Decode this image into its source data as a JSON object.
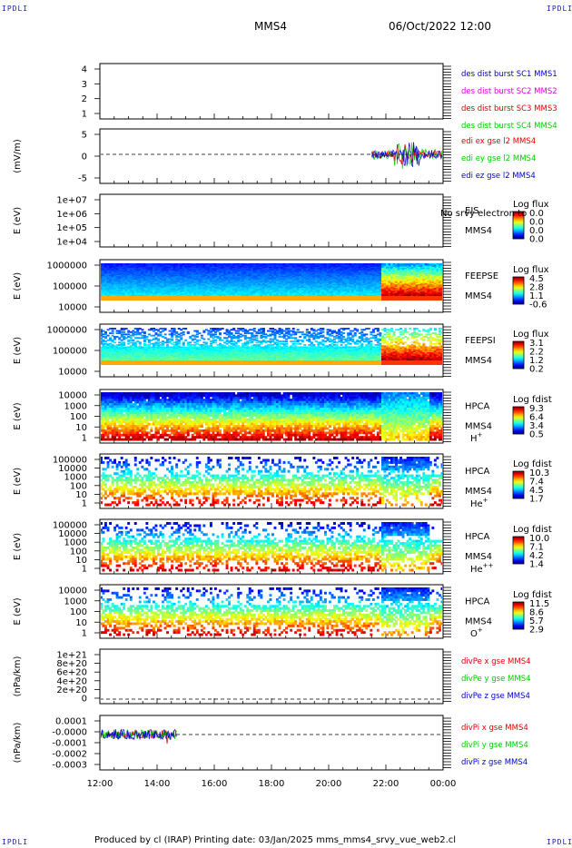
{
  "corners": {
    "tl": "IPDLI",
    "tr": "IPDLI",
    "bl": "IPDLI",
    "br": "IPDLI"
  },
  "header": {
    "spacecraft": "MMS4",
    "datetime": "06/Oct/2022 12:00"
  },
  "footer": {
    "text": "Produced by cl (IRAP)   Printing date: 03/Jan/2025   mms_mms4_srvy_vue_web2.cl"
  },
  "colors": {
    "blue": "#0000cc",
    "magenta": "#e000e0",
    "red": "#dd0000",
    "green": "#00cc00"
  },
  "chart_data": {
    "type": "multi-panel time series / spectrogram",
    "x": {
      "ticks": [
        "12:00",
        "14:00",
        "16:00",
        "18:00",
        "20:00",
        "22:00",
        "00:00"
      ],
      "range_hours": [
        12,
        24
      ]
    },
    "panels": [
      {
        "id": "p1",
        "ylabel": "",
        "yticks": [
          "4",
          "3",
          "2",
          "1"
        ],
        "legend": [
          {
            "text": "des dist burst SC1 MMS1",
            "color": "#0000cc"
          },
          {
            "text": "des dist burst SC2 MMS2",
            "color": "#e000e0"
          },
          {
            "text": "des dist burst SC3 MMS3",
            "color": "#dd0000"
          },
          {
            "text": "des dist burst SC4 MMS4",
            "color": "#00cc00"
          }
        ]
      },
      {
        "id": "p2",
        "ylabel": "(mV/m)",
        "yticks": [
          "5",
          "0",
          "-5"
        ],
        "legend": [
          {
            "text": "edi ex gse l2 MMS4",
            "color": "#dd0000"
          },
          {
            "text": "edi ey gse l2 MMS4",
            "color": "#00cc00"
          },
          {
            "text": "edi ez gse l2 MMS4",
            "color": "#0000cc"
          }
        ],
        "data_start_hour": 21.5
      },
      {
        "id": "p3",
        "ylabel": "E (eV)",
        "yticks": [
          "1e+07",
          "1e+06",
          "1e+05",
          "1e+04"
        ],
        "side": [
          "EIS",
          "MMS4"
        ],
        "overlay": "No srvy electron to",
        "cbar": {
          "title": "Log flux",
          "values": [
            "0.0",
            "0.0",
            "0.0",
            "0.0"
          ]
        }
      },
      {
        "id": "p4",
        "ylabel": "E (eV)",
        "yticks": [
          "1000000",
          "100000",
          "10000"
        ],
        "side": [
          "FEEPSE",
          "MMS4"
        ],
        "cbar": {
          "title": "Log flux",
          "values": [
            "4.5",
            "2.8",
            "1.1",
            "-0.6"
          ]
        }
      },
      {
        "id": "p5",
        "ylabel": "E (eV)",
        "yticks": [
          "1000000",
          "100000",
          "10000"
        ],
        "side": [
          "FEEPSI",
          "MMS4"
        ],
        "cbar": {
          "title": "Log flux",
          "values": [
            "3.1",
            "2.2",
            "1.2",
            "0.2"
          ]
        }
      },
      {
        "id": "p6",
        "ylabel": "E (eV)",
        "yticks": [
          "10000",
          "1000",
          "100",
          "10",
          "1"
        ],
        "side": [
          "HPCA",
          "MMS4"
        ],
        "species": "H",
        "species_sup": "+",
        "cbar": {
          "title": "Log fdist",
          "values": [
            "9.3",
            "6.4",
            "3.4",
            "0.5"
          ]
        }
      },
      {
        "id": "p7",
        "ylabel": "E (eV)",
        "yticks": [
          "100000",
          "10000",
          "1000",
          "100",
          "10",
          "1"
        ],
        "side": [
          "HPCA",
          "MMS4"
        ],
        "species": "He",
        "species_sup": "+",
        "cbar": {
          "title": "Log fdist",
          "values": [
            "10.3",
            "7.4",
            "4.5",
            "1.7"
          ]
        }
      },
      {
        "id": "p8",
        "ylabel": "E (eV)",
        "yticks": [
          "100000",
          "10000",
          "1000",
          "100",
          "10",
          "1"
        ],
        "side": [
          "HPCA",
          "MMS4"
        ],
        "species": "He",
        "species_sup": "++",
        "cbar": {
          "title": "Log fdist",
          "values": [
            "10.0",
            "7.1",
            "4.2",
            "1.4"
          ]
        }
      },
      {
        "id": "p9",
        "ylabel": "E (eV)",
        "yticks": [
          "10000",
          "1000",
          "100",
          "10",
          "1"
        ],
        "side": [
          "HPCA",
          "MMS4"
        ],
        "species": "O",
        "species_sup": "+",
        "cbar": {
          "title": "Log fdist",
          "values": [
            "11.5",
            "8.6",
            "5.7",
            "2.9"
          ]
        }
      },
      {
        "id": "p10",
        "ylabel": "(nPa/km)",
        "yticks": [
          "1e+21",
          "8e+20",
          "6e+20",
          "4e+20",
          "2e+20",
          "0"
        ],
        "legend": [
          {
            "text": "divPe x gse MMS4",
            "color": "#dd0000"
          },
          {
            "text": "divPe y gse MMS4",
            "color": "#00cc00"
          },
          {
            "text": "divPe z gse MMS4",
            "color": "#0000cc"
          }
        ]
      },
      {
        "id": "p11",
        "ylabel": "(nPa/km)",
        "yticks": [
          "0.0001",
          "-0.0000",
          "-0.0001",
          "-0.0002",
          "-0.0003"
        ],
        "legend": [
          {
            "text": "divPi x gse MMS4",
            "color": "#dd0000"
          },
          {
            "text": "divPi y gse MMS4",
            "color": "#00cc00"
          },
          {
            "text": "divPi z gse MMS4",
            "color": "#0000cc"
          }
        ],
        "data_range_hours": [
          12,
          14.7
        ]
      }
    ]
  }
}
